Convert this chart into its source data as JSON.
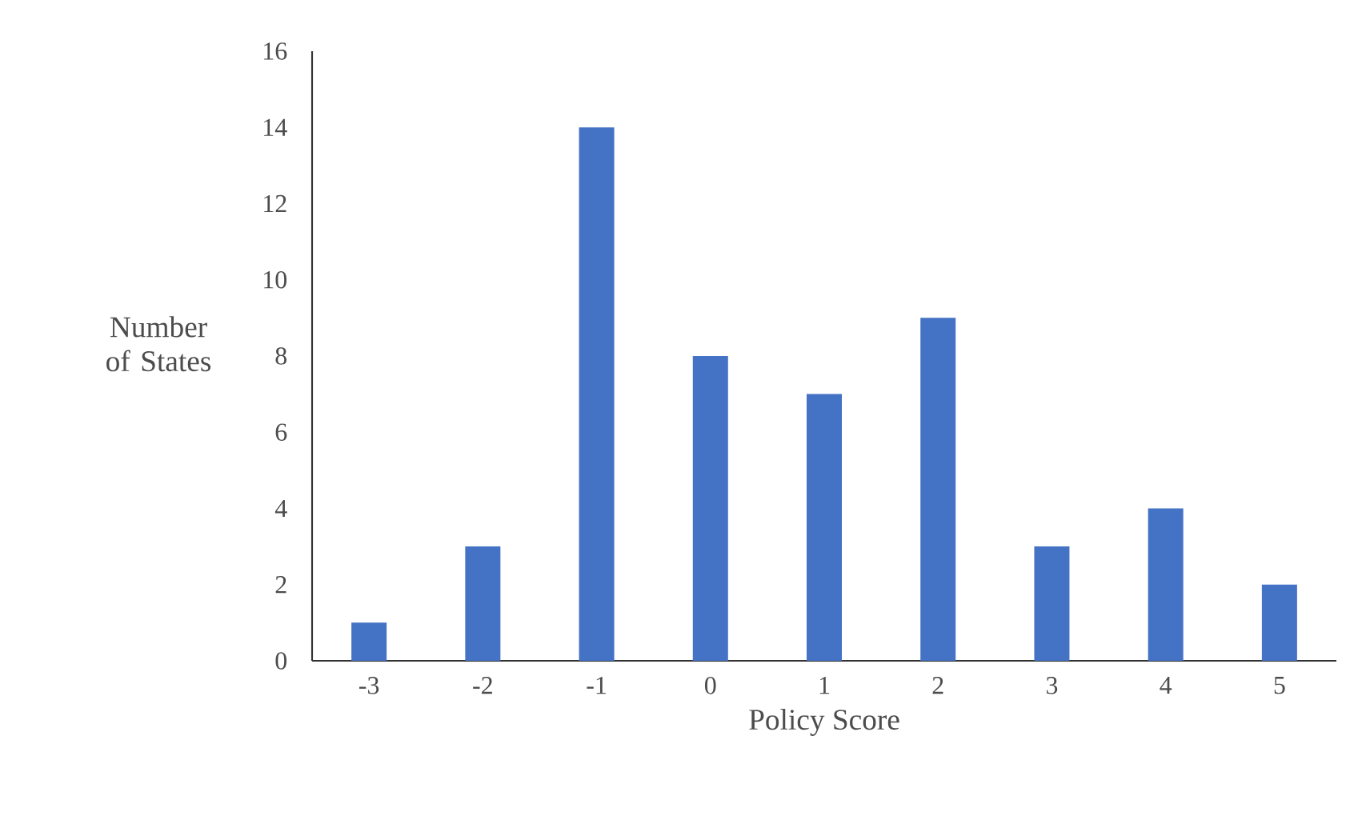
{
  "chart_data": {
    "type": "bar",
    "xlabel": "Policy Score",
    "ylabel": "Number of States",
    "categories": [
      "-3",
      "-2",
      "-1",
      "0",
      "1",
      "2",
      "3",
      "4",
      "5"
    ],
    "values": [
      1,
      3,
      14,
      8,
      7,
      9,
      3,
      4,
      2
    ],
    "color": "#4472c4",
    "ylim": [
      0,
      16
    ],
    "yticks": [
      0,
      2,
      4,
      6,
      8,
      10,
      12,
      14,
      16
    ],
    "grid": false
  }
}
